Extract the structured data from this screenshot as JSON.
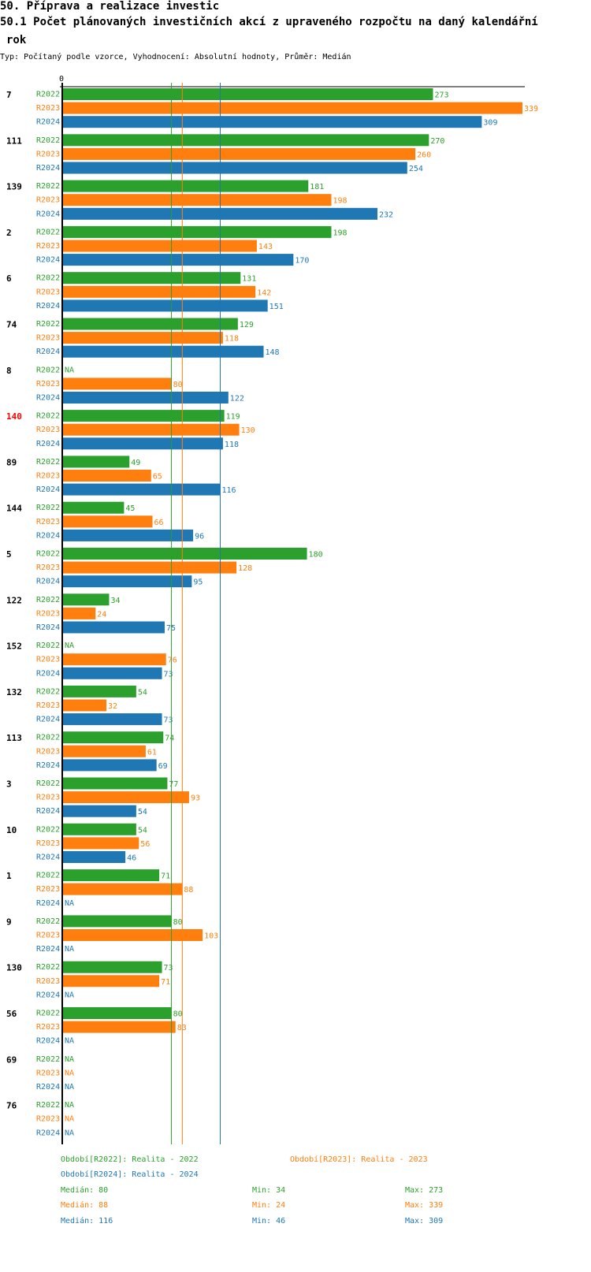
{
  "header": {
    "title": "50. Příprava a realizace investic",
    "subtitle_line1": "50.1 Počet plánovaných investičních akcí z upraveného rozpočtu na daný kalendářní",
    "subtitle_line2": "rok",
    "meta": "Typ: Počítaný podle vzorce, Vyhodnocení: Absolutní hodnoty, Průměr: Medián"
  },
  "colors": {
    "R2022": "#2ca02c",
    "R2023": "#ff7f0e",
    "R2024": "#1f77b4",
    "highlight": "#ff0000"
  },
  "chart_data": {
    "type": "bar",
    "orientation": "horizontal",
    "axis_zero_label": "0",
    "xlim": [
      0,
      339
    ],
    "na_label": "NA",
    "series_names": [
      "R2022",
      "R2023",
      "R2024"
    ],
    "highlight_category": "140",
    "groups": [
      {
        "id": "7",
        "values": [
          273,
          339,
          309
        ]
      },
      {
        "id": "111",
        "values": [
          270,
          260,
          254
        ]
      },
      {
        "id": "139",
        "values": [
          181,
          198,
          232
        ]
      },
      {
        "id": "2",
        "values": [
          198,
          143,
          170
        ]
      },
      {
        "id": "6",
        "values": [
          131,
          142,
          151
        ]
      },
      {
        "id": "74",
        "values": [
          129,
          118,
          148
        ]
      },
      {
        "id": "8",
        "values": [
          null,
          80,
          122
        ]
      },
      {
        "id": "140",
        "values": [
          119,
          130,
          118
        ]
      },
      {
        "id": "89",
        "values": [
          49,
          65,
          116
        ]
      },
      {
        "id": "144",
        "values": [
          45,
          66,
          96
        ]
      },
      {
        "id": "5",
        "values": [
          180,
          128,
          95
        ]
      },
      {
        "id": "122",
        "values": [
          34,
          24,
          75
        ]
      },
      {
        "id": "152",
        "values": [
          null,
          76,
          73
        ]
      },
      {
        "id": "132",
        "values": [
          54,
          32,
          73
        ]
      },
      {
        "id": "113",
        "values": [
          74,
          61,
          69
        ]
      },
      {
        "id": "3",
        "values": [
          77,
          93,
          54
        ]
      },
      {
        "id": "10",
        "values": [
          54,
          56,
          46
        ]
      },
      {
        "id": "1",
        "values": [
          71,
          88,
          null
        ]
      },
      {
        "id": "9",
        "values": [
          80,
          103,
          null
        ]
      },
      {
        "id": "130",
        "values": [
          73,
          71,
          null
        ]
      },
      {
        "id": "56",
        "values": [
          80,
          83,
          null
        ]
      },
      {
        "id": "69",
        "values": [
          null,
          null,
          null
        ]
      },
      {
        "id": "76",
        "values": [
          null,
          null,
          null
        ]
      }
    ],
    "reference_lines": {
      "R2022": 80,
      "R2023": 88,
      "R2024": 116
    }
  },
  "legend": {
    "r2022": "Období[R2022]: Realita - 2022",
    "r2023": "Období[R2023]: Realita - 2023",
    "r2024": "Období[R2024]: Realita - 2024",
    "stats": [
      {
        "median": "Medián: 80",
        "min": "Min: 34",
        "max": "Max: 273"
      },
      {
        "median": "Medián: 88",
        "min": "Min: 24",
        "max": "Max: 339"
      },
      {
        "median": "Medián: 116",
        "min": "Min: 46",
        "max": "Max: 309"
      }
    ]
  }
}
